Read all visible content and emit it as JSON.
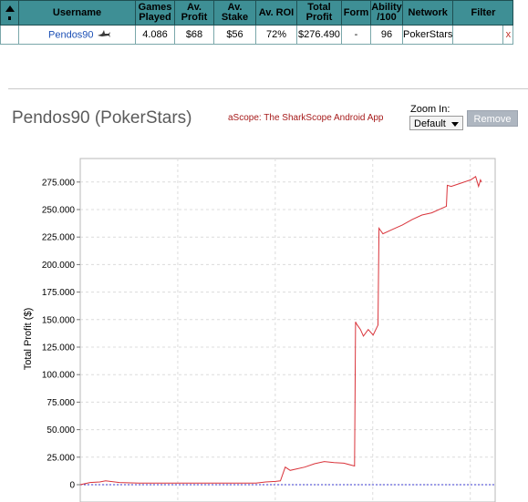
{
  "table": {
    "headers": [
      "",
      "Username",
      "Games Played",
      "Av. Profit",
      "Av. Stake",
      "Av. ROI",
      "Total Profit",
      "Form",
      "Ability /100",
      "Network",
      "Filter"
    ],
    "row": {
      "username": "Pendos90",
      "games_played": "4.086",
      "av_profit": "$68",
      "av_stake": "$56",
      "av_roi": "72%",
      "total_profit": "$276.490",
      "form": "-",
      "ability": "96",
      "network": "PokerStars",
      "filter": "x"
    }
  },
  "header": {
    "title": "Pendos90 (PokerStars)",
    "app_link": "aScope: The SharkScope Android App",
    "zoom_label": "Zoom In:",
    "zoom_value": "Default",
    "remove_label": "Remove"
  },
  "chart_data": {
    "type": "line",
    "ylabel": "Total Profit ($)",
    "xlabel": "",
    "ylim": [
      -10000,
      292000
    ],
    "y_ticks": [
      "0",
      "25.000",
      "50.000",
      "75.000",
      "100.000",
      "125.000",
      "150.000",
      "175.000",
      "200.000",
      "225.000",
      "250.000",
      "275.000"
    ],
    "grid": true,
    "line_color": "#d9333a",
    "x_label_series": "games played",
    "xlim": [
      0,
      4250
    ],
    "series": [
      {
        "x": [
          0,
          100,
          200,
          260,
          400,
          600,
          900,
          1200,
          1500,
          1800,
          1900,
          2000,
          2050,
          2100,
          2150,
          2300,
          2400,
          2500,
          2600,
          2700,
          2810,
          2820,
          2830,
          2870,
          2900,
          2950,
          3000,
          3050,
          3060,
          3100,
          3200,
          3300,
          3400,
          3500,
          3600,
          3700,
          3750,
          3760,
          3800,
          3900,
          4000,
          4050,
          4080,
          4100,
          4110
        ],
        "y": [
          0,
          2000,
          2500,
          3500,
          2000,
          1500,
          1500,
          1500,
          1500,
          1500,
          2500,
          3000,
          3500,
          16000,
          13000,
          16000,
          19000,
          21000,
          20000,
          19500,
          17000,
          148000,
          146000,
          141000,
          135000,
          141000,
          136000,
          145000,
          233000,
          228000,
          232000,
          236000,
          241000,
          245000,
          247000,
          251000,
          253000,
          272000,
          271000,
          274000,
          277000,
          280000,
          271000,
          277000,
          275000
        ]
      }
    ]
  }
}
